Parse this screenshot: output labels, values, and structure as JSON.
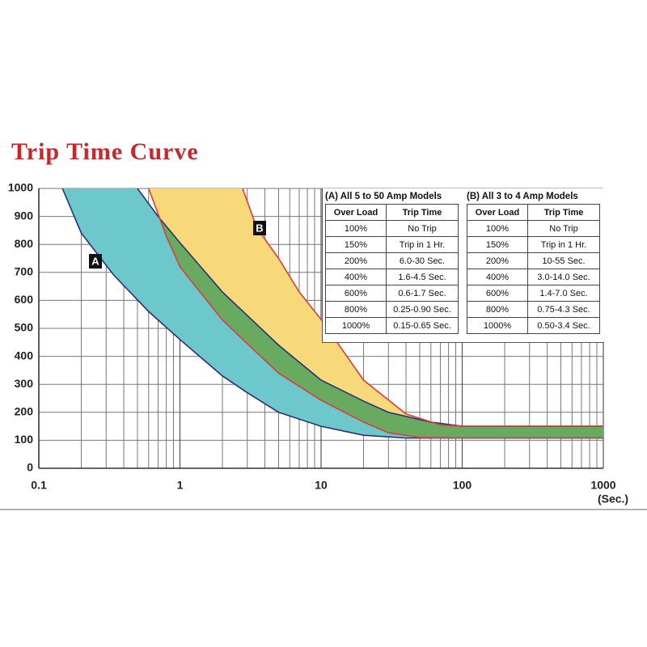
{
  "chart_data": {
    "type": "band",
    "title": "Trip Time Curve",
    "x_label": "(Sec.)",
    "log_x": true,
    "xlim": [
      0.1,
      1000
    ],
    "xticks": [
      0.1,
      1,
      10,
      100,
      1000
    ],
    "xminorticks": [
      0.2,
      0.3,
      0.4,
      0.5,
      0.6,
      0.7,
      0.8,
      0.9,
      2,
      3,
      4,
      5,
      6,
      7,
      8,
      9,
      20,
      30,
      40,
      50,
      60,
      70,
      80,
      90,
      200,
      300,
      400,
      500,
      600,
      700,
      800,
      900
    ],
    "ylim": [
      0,
      1000
    ],
    "yticks": [
      0,
      100,
      200,
      300,
      400,
      500,
      600,
      700,
      800,
      900,
      1000
    ],
    "grid": true,
    "bands": [
      {
        "name": "A",
        "fill": "#6cc8cb",
        "stroke": "#2a2f7a",
        "left_x": [
          0.147,
          0.2,
          0.34,
          0.6,
          1,
          2,
          3,
          5,
          10,
          20,
          40,
          100,
          1000
        ],
        "left_y": [
          1000,
          840,
          690,
          560,
          460,
          330,
          270,
          200,
          150,
          118,
          108,
          108,
          108
        ],
        "right_x": [
          0.5,
          0.7,
          1,
          2,
          3,
          5,
          10,
          20,
          30,
          60,
          100,
          1000
        ],
        "right_y": [
          1000,
          900,
          806,
          630,
          546,
          440,
          315,
          240,
          200,
          165,
          150,
          150
        ]
      },
      {
        "name": "B",
        "fill": "#f8d97a",
        "stroke": "#e03a3a",
        "left_x": [
          0.6,
          0.8,
          1,
          2,
          3,
          5,
          10,
          20,
          30,
          50,
          100,
          1000
        ],
        "left_y": [
          1000,
          830,
          720,
          530,
          445,
          340,
          243,
          165,
          127,
          110,
          108,
          108
        ],
        "right_x": [
          2.78,
          3.5,
          5,
          7,
          10,
          20,
          40,
          70,
          100,
          1000
        ],
        "right_y": [
          1000,
          860,
          750,
          630,
          532,
          315,
          194,
          155,
          150,
          150
        ]
      }
    ],
    "tables": [
      {
        "title": "(A) All 5 to 50 Amp Models",
        "header": [
          "Over Load",
          "Trip Time"
        ],
        "rows": [
          [
            "100%",
            "No Trip"
          ],
          [
            "150%",
            "Trip in 1 Hr."
          ],
          [
            "200%",
            "6.0-30 Sec."
          ],
          [
            "400%",
            "1.6-4.5 Sec."
          ],
          [
            "600%",
            "0.6-1.7 Sec."
          ],
          [
            "800%",
            "0.25-0.90 Sec."
          ],
          [
            "1000%",
            "0.15-0.65 Sec."
          ]
        ]
      },
      {
        "title": "(B) All 3 to 4 Amp Models",
        "header": [
          "Over Load",
          "Trip Time"
        ],
        "rows": [
          [
            "100%",
            "No Trip"
          ],
          [
            "150%",
            "Trip in 1 Hr."
          ],
          [
            "200%",
            "10-55 Sec."
          ],
          [
            "400%",
            "3.0-14.0 Sec."
          ],
          [
            "600%",
            "1.4-7.0 Sec."
          ],
          [
            "800%",
            "0.75-4.3 Sec."
          ],
          [
            "1000%",
            "0.50-3.4 Sec."
          ]
        ]
      }
    ]
  }
}
